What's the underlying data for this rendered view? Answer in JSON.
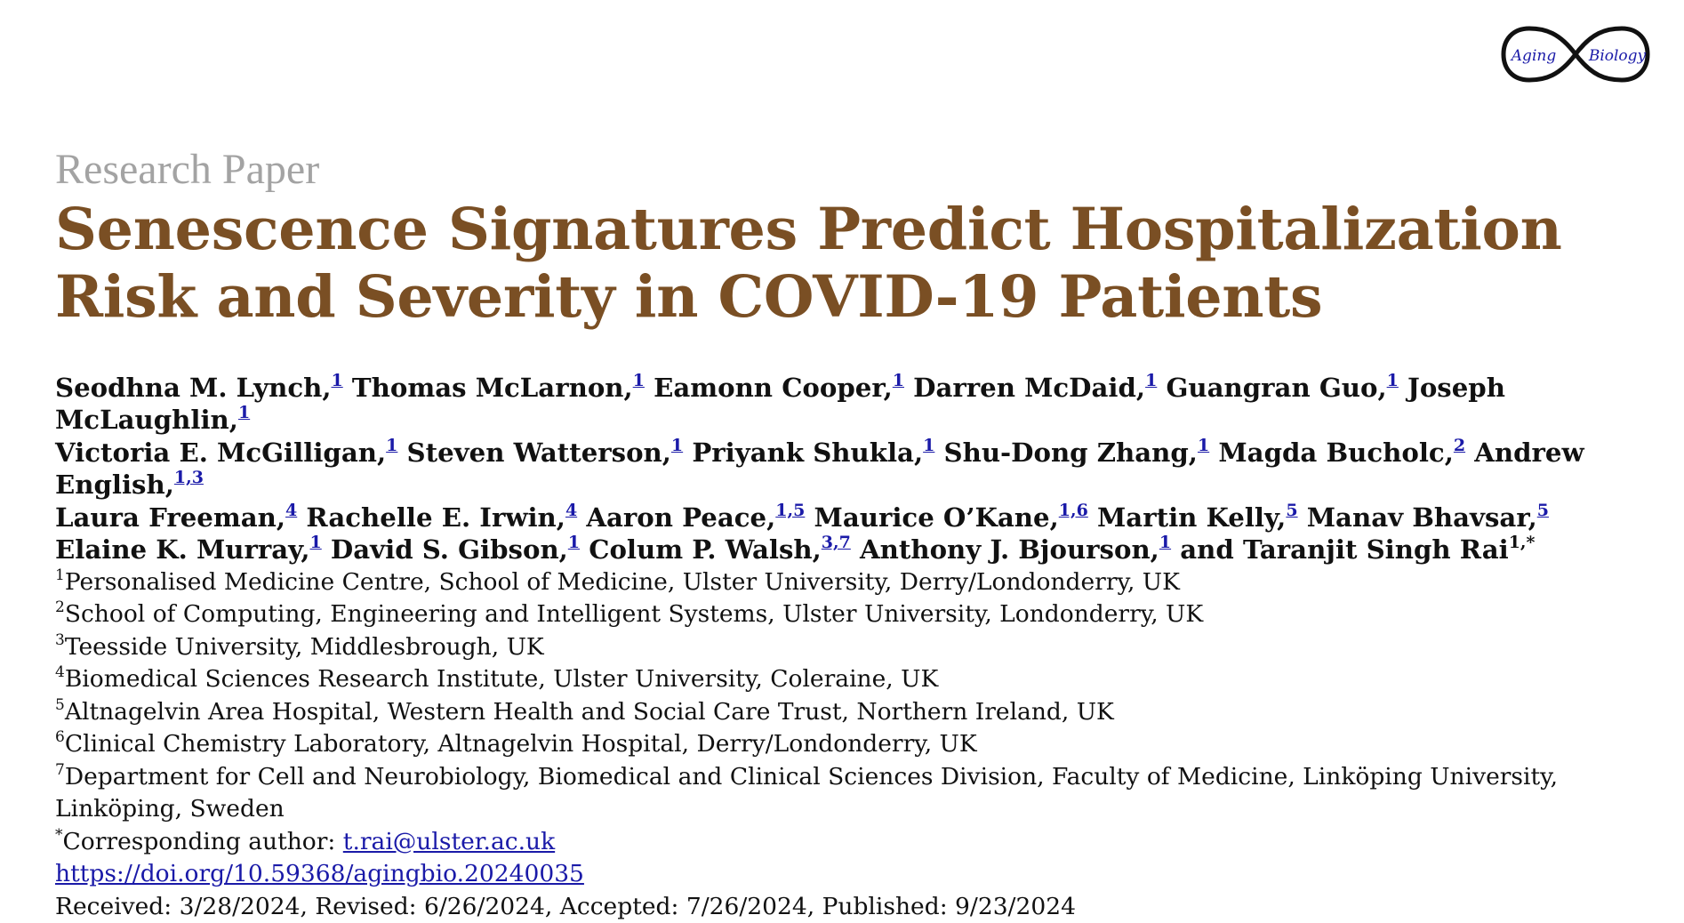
{
  "logo": {
    "word_left": "Aging",
    "word_right": "Biology",
    "ring_color": "#111111",
    "text_color": "#1a1aa8"
  },
  "header": {
    "article_type": "Research Paper",
    "title_line1": "Senescence Signatures Predict Hospitalization",
    "title_line2": "Risk and Severity in COVID-19 Patients"
  },
  "authors": [
    {
      "name": "Seodhna M. Lynch,",
      "sup": "1"
    },
    {
      "name": "Thomas McLarnon,",
      "sup": "1"
    },
    {
      "name": "Eamonn Cooper,",
      "sup": "1"
    },
    {
      "name": "Darren McDaid,",
      "sup": "1"
    },
    {
      "name": "Guangran Guo,",
      "sup": "1"
    },
    {
      "name": "Joseph McLaughlin,",
      "sup": "1"
    },
    {
      "name": "Victoria E. McGilligan,",
      "sup": "1"
    },
    {
      "name": "Steven Watterson,",
      "sup": "1"
    },
    {
      "name": "Priyank Shukla,",
      "sup": "1"
    },
    {
      "name": "Shu-Dong Zhang,",
      "sup": "1"
    },
    {
      "name": "Magda Bucholc,",
      "sup": "2"
    },
    {
      "name": "Andrew English,",
      "sup": "1,3"
    },
    {
      "name": "Laura Freeman,",
      "sup": "4"
    },
    {
      "name": "Rachelle E. Irwin,",
      "sup": "4"
    },
    {
      "name": "Aaron Peace,",
      "sup": "1,5"
    },
    {
      "name": "Maurice O’Kane,",
      "sup": "1,6"
    },
    {
      "name": "Martin Kelly,",
      "sup": "5"
    },
    {
      "name": "Manav Bhavsar,",
      "sup": "5"
    },
    {
      "name": "Elaine K. Murray,",
      "sup": "1"
    },
    {
      "name": "David S. Gibson,",
      "sup": "1"
    },
    {
      "name": "Colum P. Walsh,",
      "sup": "3,7"
    },
    {
      "name": "Anthony J. Bjourson,",
      "sup": "1"
    },
    {
      "name": "and Taranjit Singh Rai",
      "sup": "1,*"
    }
  ],
  "affiliations": [
    {
      "num": "1",
      "text": "Personalised Medicine Centre, School of Medicine, Ulster University, Derry/Londonderry, UK"
    },
    {
      "num": "2",
      "text": "School of Computing, Engineering and Intelligent Systems, Ulster University, Londonderry, UK"
    },
    {
      "num": "3",
      "text": "Teesside University, Middlesbrough, UK"
    },
    {
      "num": "4",
      "text": "Biomedical Sciences Research Institute, Ulster University, Coleraine, UK"
    },
    {
      "num": "5",
      "text": "Altnagelvin Area Hospital, Western Health and Social Care Trust, Northern Ireland, UK"
    },
    {
      "num": "6",
      "text": "Clinical Chemistry Laboratory, Altnagelvin Hospital, Derry/Londonderry, UK"
    },
    {
      "num": "7",
      "text": "Department for Cell and Neurobiology, Biomedical and Clinical Sciences Division, Faculty of Medicine, Linköping University,"
    }
  ],
  "affiliation7_cont": "Linköping, Sweden",
  "correspondence": {
    "mark": "*",
    "label": "Corresponding author: ",
    "email": "t.rai@ulster.ac.uk"
  },
  "doi": "https://doi.org/10.59368/agingbio.20240035",
  "dates": "Received: 3/28/2024, Revised: 6/26/2024, Accepted: 7/26/2024, Published: 9/23/2024"
}
